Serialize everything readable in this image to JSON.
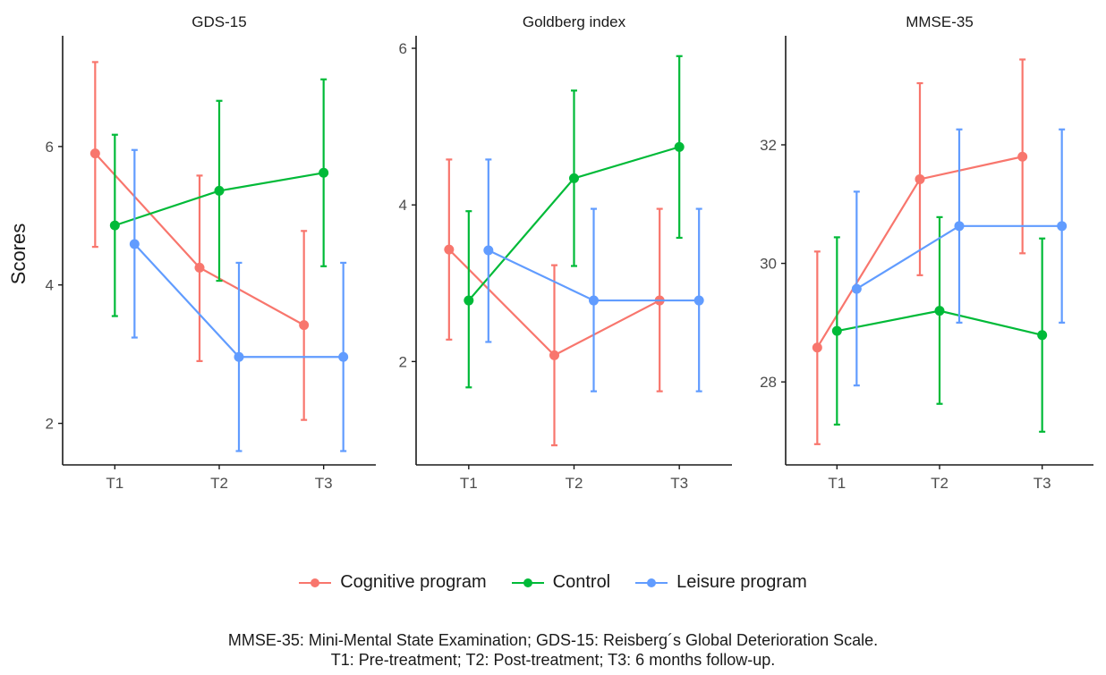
{
  "colors": {
    "Cognitive program": "#F8766D",
    "Control": "#00BA38",
    "Leisure program": "#619CFF"
  },
  "legend": {
    "items": [
      {
        "label": "Cognitive program",
        "color": "#F8766D"
      },
      {
        "label": "Control",
        "color": "#00BA38"
      },
      {
        "label": "Leisure program",
        "color": "#619CFF"
      }
    ]
  },
  "caption": {
    "line1": "MMSE-35: Mini-Mental State Examination; GDS-15: Reisberg´s Global Deterioration Scale.",
    "line2": "T1: Pre-treatment; T2: Post-treatment; T3: 6 months follow-up."
  },
  "chart_data": [
    {
      "type": "line",
      "title": "GDS-15",
      "ylabel": "Scores",
      "x": [
        "T1",
        "T2",
        "T3"
      ],
      "ylim": [
        1.4,
        7.6
      ],
      "yticks": [
        2,
        4,
        6
      ],
      "series": [
        {
          "name": "Cognitive program",
          "y": [
            5.9,
            4.25,
            3.42
          ],
          "lower": [
            4.55,
            2.9,
            2.05
          ],
          "upper": [
            7.22,
            5.58,
            4.78
          ]
        },
        {
          "name": "Control",
          "y": [
            4.86,
            5.36,
            5.62
          ],
          "lower": [
            3.55,
            4.06,
            4.27
          ],
          "upper": [
            6.17,
            6.66,
            6.97
          ]
        },
        {
          "name": "Leisure program",
          "y": [
            4.59,
            2.96,
            2.96
          ],
          "lower": [
            3.24,
            1.6,
            1.6
          ],
          "upper": [
            5.95,
            4.32,
            4.32
          ]
        }
      ]
    },
    {
      "type": "line",
      "title": "Goldberg index",
      "ylabel": "",
      "x": [
        "T1",
        "T2",
        "T3"
      ],
      "ylim": [
        0.68,
        6.16
      ],
      "yticks": [
        2,
        4,
        6
      ],
      "series": [
        {
          "name": "Cognitive program",
          "y": [
            3.43,
            2.08,
            2.78
          ],
          "lower": [
            2.28,
            0.93,
            1.62
          ],
          "upper": [
            4.58,
            3.23,
            3.95
          ]
        },
        {
          "name": "Control",
          "y": [
            2.78,
            4.34,
            4.74
          ],
          "lower": [
            1.67,
            3.22,
            3.58
          ],
          "upper": [
            3.92,
            5.46,
            5.9
          ]
        },
        {
          "name": "Leisure program",
          "y": [
            3.42,
            2.78,
            2.78
          ],
          "lower": [
            2.25,
            1.62,
            1.62
          ],
          "upper": [
            4.58,
            3.95,
            3.95
          ]
        }
      ]
    },
    {
      "type": "line",
      "title": "MMSE-35",
      "ylabel": "",
      "x": [
        "T1",
        "T2",
        "T3"
      ],
      "ylim": [
        26.6,
        33.84
      ],
      "yticks": [
        28,
        30,
        32
      ],
      "series": [
        {
          "name": "Cognitive program",
          "y": [
            28.58,
            31.42,
            31.8
          ],
          "lower": [
            26.95,
            29.8,
            30.17
          ],
          "upper": [
            30.2,
            33.04,
            33.44
          ]
        },
        {
          "name": "Control",
          "y": [
            28.86,
            29.2,
            28.79
          ],
          "lower": [
            27.28,
            27.63,
            27.16
          ],
          "upper": [
            30.44,
            30.78,
            30.42
          ]
        },
        {
          "name": "Leisure program",
          "y": [
            29.57,
            30.63,
            30.63
          ],
          "lower": [
            27.94,
            29.0,
            29.0
          ],
          "upper": [
            31.21,
            32.26,
            32.26
          ]
        }
      ]
    }
  ]
}
